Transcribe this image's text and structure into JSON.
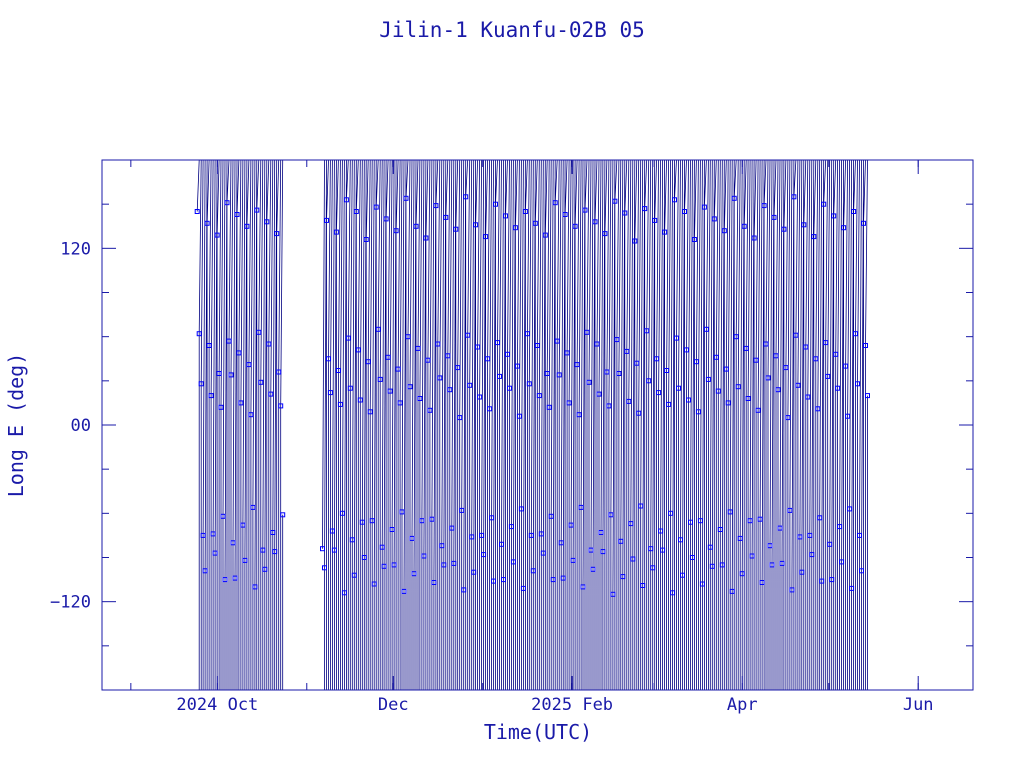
{
  "chart_data": {
    "type": "scatter",
    "title": "Jilin-1 Kuanfu-02B 05",
    "xlabel": "Time(UTC)",
    "ylabel": "Long E (deg)",
    "xlim": [
      "2024-08-22",
      "2025-06-20"
    ],
    "ylim": [
      -180,
      180
    ],
    "x_ticks": [
      {
        "date": "2024-10-01",
        "label": "2024 Oct"
      },
      {
        "date": "2024-12-01",
        "label": "Dec"
      },
      {
        "date": "2025-02-01",
        "label": "2025 Feb"
      },
      {
        "date": "2025-04-01",
        "label": "Apr"
      },
      {
        "date": "2025-06-01",
        "label": "Jun"
      }
    ],
    "y_ticks": [
      {
        "value": 120,
        "label": "120"
      },
      {
        "value": 0,
        "label": "00"
      },
      {
        "value": -120,
        "label": "−120"
      }
    ],
    "grid": false,
    "colors": {
      "axis": "#1a1aa8",
      "line": "#000080",
      "marker": "#0000ff"
    },
    "series": [
      {
        "x_start": "2024-09-24",
        "x_end": "2025-05-15",
        "gaps": [
          [
            "2024-10-24",
            "2024-11-06"
          ]
        ],
        "passes_per_day": 1.45,
        "longitude_drift_deg_per_day": 25,
        "sample_longitudes": [
          150,
          60,
          30,
          -80,
          -100,
          140,
          50,
          20,
          -70,
          -90,
          130,
          40,
          10,
          -60,
          -110
        ]
      }
    ]
  }
}
